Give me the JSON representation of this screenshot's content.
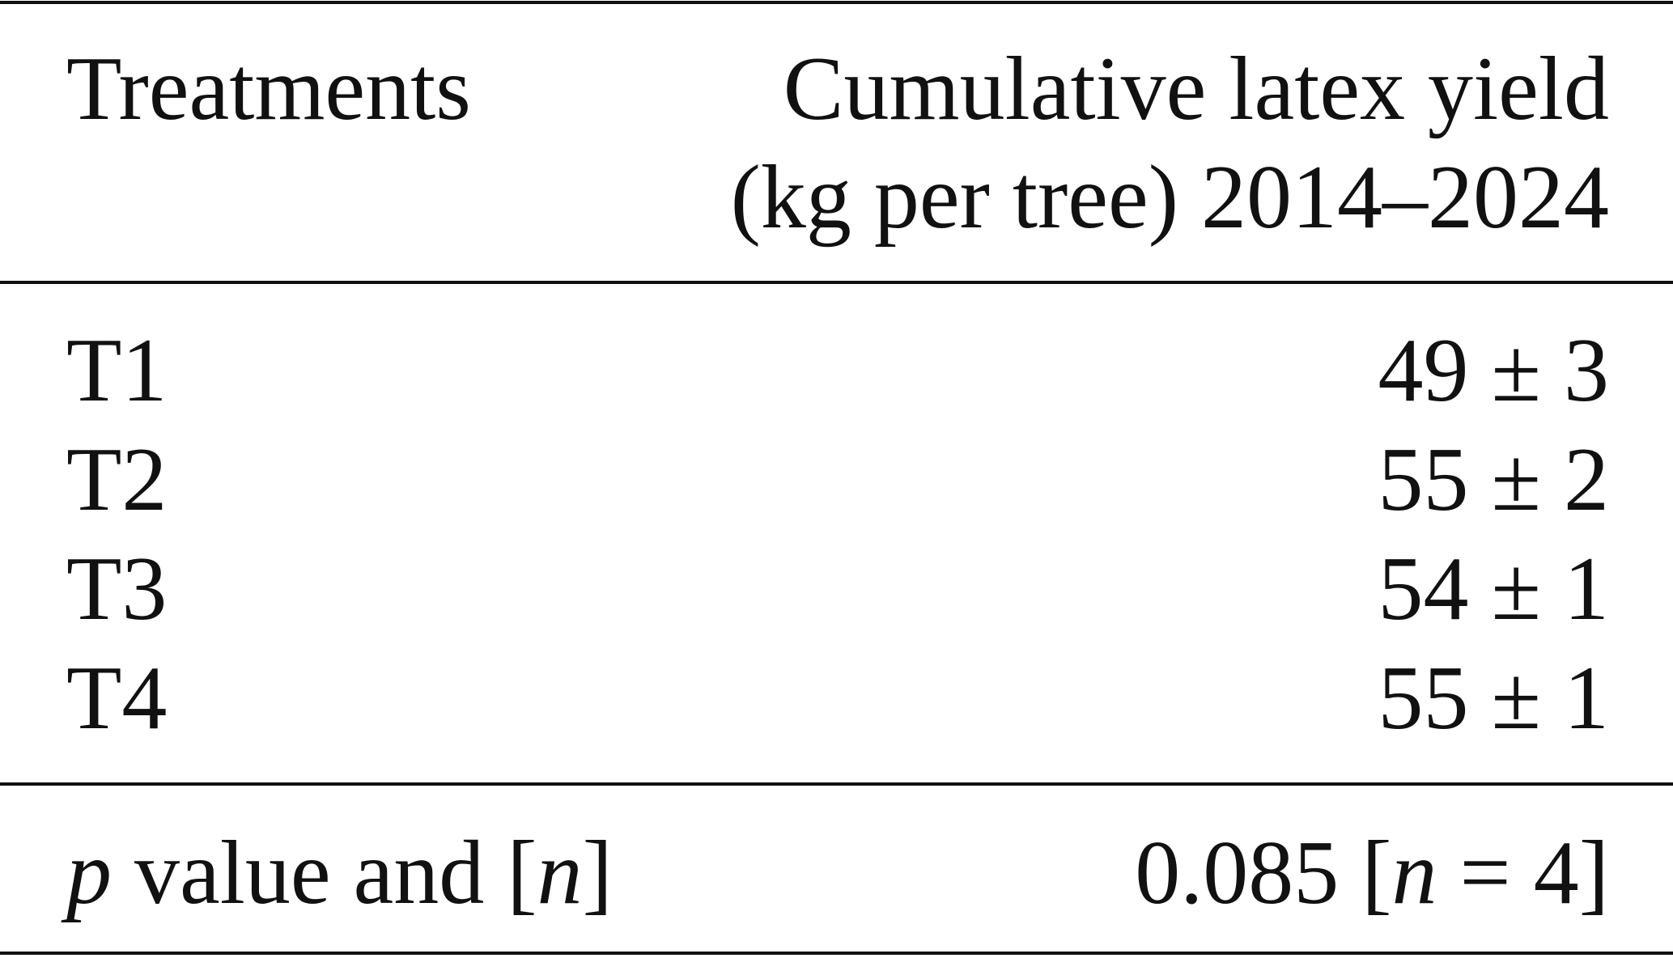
{
  "table": {
    "header": [
      "Treatments",
      [
        "Cumulative latex yield",
        "(kg per tree) 2014–2024"
      ]
    ],
    "rows": [
      [
        "T1",
        "49 ± 3"
      ],
      [
        "T2",
        "55 ± 2"
      ],
      [
        "T3",
        "54 ± 1"
      ],
      [
        "T4",
        "55 ± 1"
      ]
    ],
    "footer": [
      [
        "p",
        " value and [",
        "n",
        "]"
      ],
      [
        "0.085 [",
        "n",
        " = 4]"
      ]
    ]
  }
}
